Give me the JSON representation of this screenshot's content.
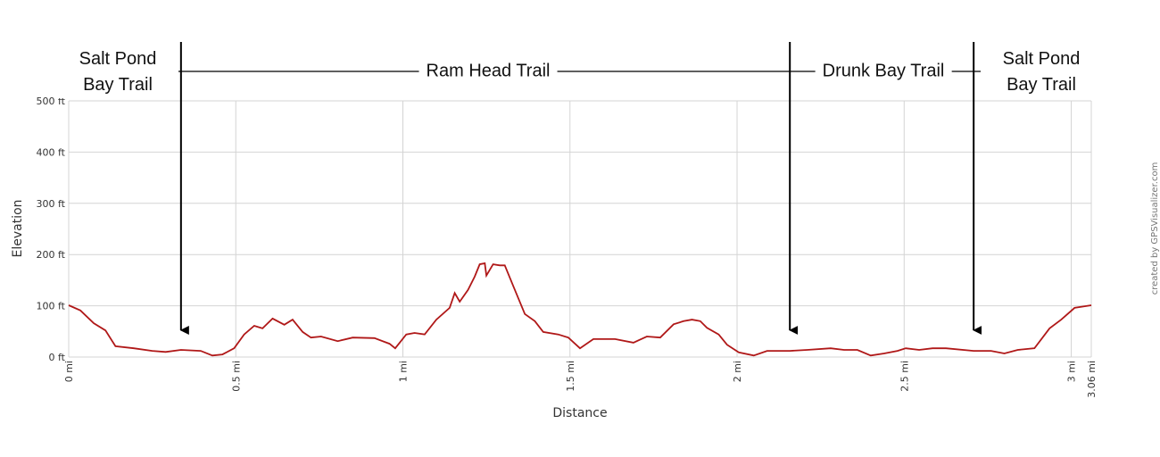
{
  "chart_data": {
    "type": "line",
    "x_label": "Distance",
    "y_label": "Elevation",
    "credit": "created by GPSVisualizer.com",
    "color": "#b01818",
    "x": [
      0,
      0.035,
      0.075,
      0.11,
      0.14,
      0.195,
      0.25,
      0.29,
      0.336,
      0.395,
      0.43,
      0.46,
      0.495,
      0.525,
      0.555,
      0.58,
      0.61,
      0.645,
      0.67,
      0.7,
      0.725,
      0.755,
      0.805,
      0.85,
      0.915,
      0.96,
      0.977,
      1.01,
      1.035,
      1.065,
      1.1,
      1.14,
      1.155,
      1.17,
      1.195,
      1.215,
      1.23,
      1.245,
      1.25,
      1.27,
      1.29,
      1.305,
      1.33,
      1.365,
      1.395,
      1.42,
      1.465,
      1.495,
      1.53,
      1.57,
      1.635,
      1.69,
      1.73,
      1.77,
      1.81,
      1.84,
      1.865,
      1.89,
      1.91,
      1.945,
      1.97,
      2.005,
      2.05,
      2.09,
      2.158,
      2.21,
      2.28,
      2.32,
      2.36,
      2.4,
      2.44,
      2.48,
      2.505,
      2.545,
      2.585,
      2.625,
      2.708,
      2.76,
      2.8,
      2.84,
      2.89,
      2.935,
      2.97,
      3.01,
      3.06
    ],
    "values": [
      101,
      91,
      66,
      52,
      21,
      17,
      12,
      10,
      14,
      12,
      3,
      5,
      17,
      44,
      61,
      56,
      75,
      63,
      73,
      49,
      38,
      40,
      31,
      38,
      37,
      26,
      17,
      44,
      47,
      44,
      73,
      96,
      125,
      108,
      131,
      157,
      181,
      183,
      159,
      181,
      179,
      179,
      139,
      84,
      70,
      49,
      44,
      38,
      17,
      35,
      35,
      28,
      40,
      38,
      64,
      70,
      73,
      70,
      57,
      44,
      24,
      9,
      3,
      12,
      12,
      14,
      17,
      14,
      14,
      3,
      7,
      12,
      17,
      14,
      17,
      17,
      12,
      12,
      7,
      14,
      17,
      56,
      73,
      96,
      101
    ],
    "xlim": [
      0,
      3.06
    ],
    "ylim": [
      0,
      500
    ],
    "xticks": [
      {
        "value": 0,
        "label": "0 mi"
      },
      {
        "value": 0.5,
        "label": "0.5 mi"
      },
      {
        "value": 1,
        "label": "1 mi"
      },
      {
        "value": 1.5,
        "label": "1.5 mi"
      },
      {
        "value": 2,
        "label": "2 mi"
      },
      {
        "value": 2.5,
        "label": "2.5 mi"
      },
      {
        "value": 3,
        "label": "3 mi"
      },
      {
        "value": 3.06,
        "label": "3.06 mi"
      }
    ],
    "yticks": [
      {
        "value": 0,
        "label": "0 ft"
      },
      {
        "value": 100,
        "label": "100 ft"
      },
      {
        "value": 200,
        "label": "200 ft"
      },
      {
        "value": 300,
        "label": "300 ft"
      },
      {
        "value": 400,
        "label": "400 ft"
      },
      {
        "value": 500,
        "label": "500 ft"
      }
    ],
    "grid": true,
    "trail_labels": [
      "Salt Pond Bay Trail",
      "Ram Head Trail",
      "Drunk Bay Trail",
      "Salt Pond Bay Trail"
    ],
    "trail_junctions": [
      0.336,
      2.158,
      2.708
    ]
  }
}
